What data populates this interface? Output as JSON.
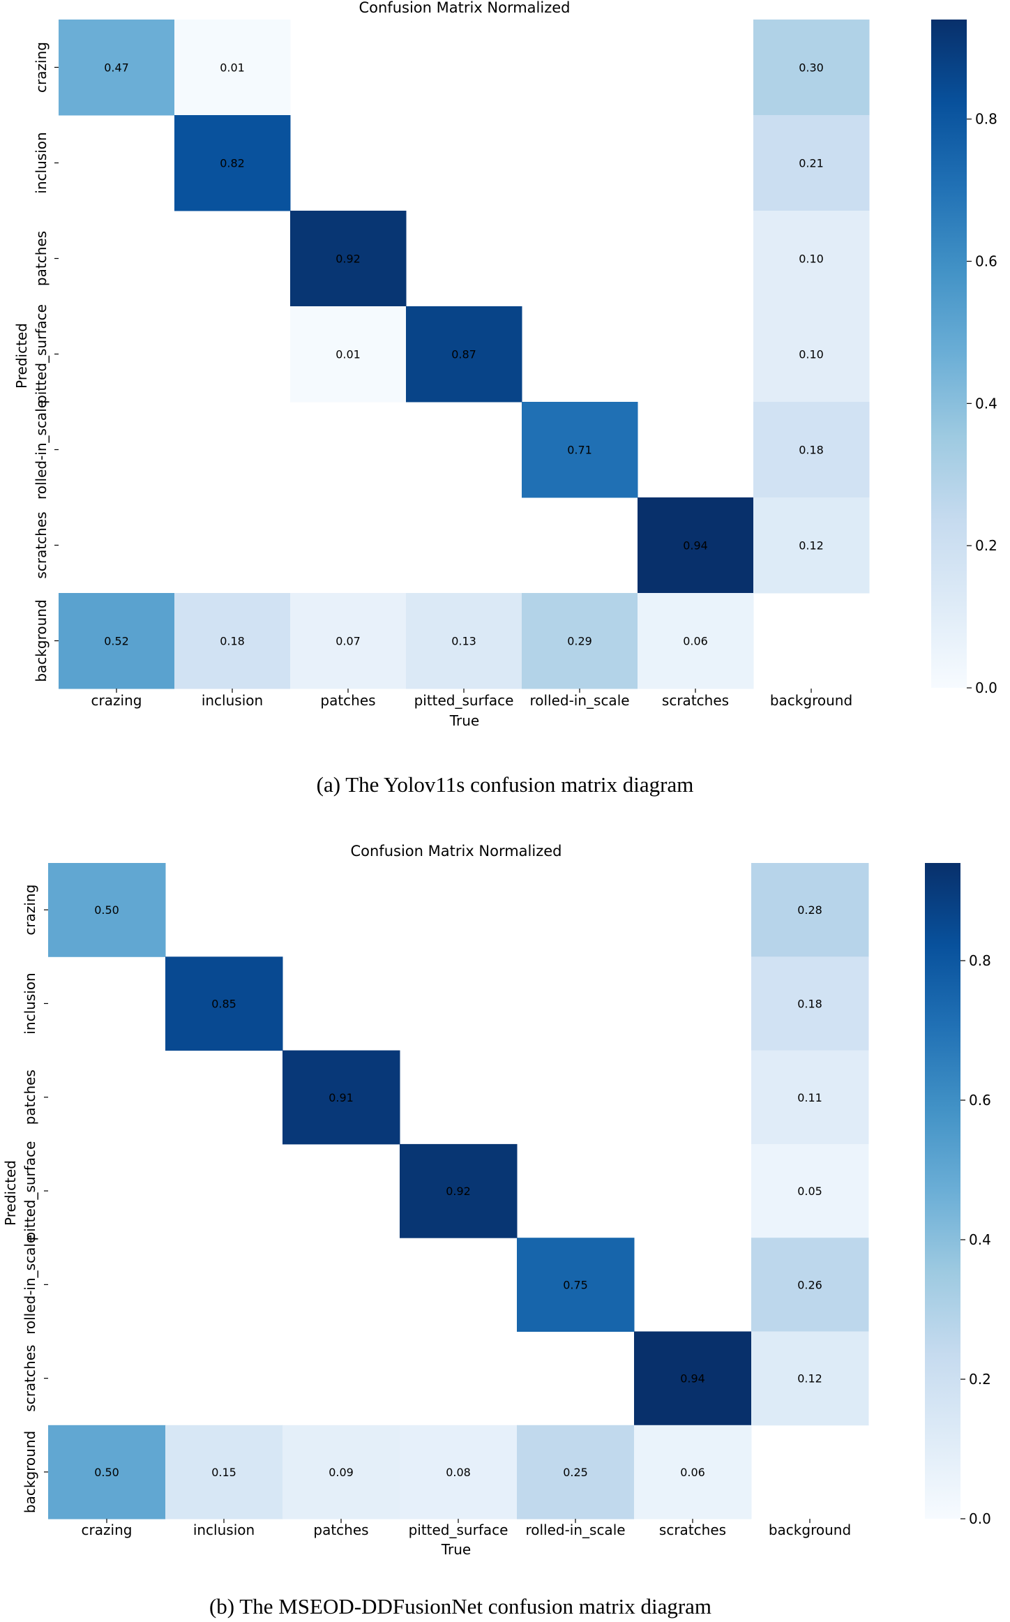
{
  "chart_data": [
    {
      "type": "heatmap",
      "title": "Confusion Matrix Normalized",
      "xlabel": "True",
      "ylabel": "Predicted",
      "x_categories": [
        "crazing",
        "inclusion",
        "patches",
        "pitted_surface",
        "rolled-in_scale",
        "scratches",
        "background"
      ],
      "y_categories": [
        "crazing",
        "inclusion",
        "patches",
        "pitted_surface",
        "rolled-in_scale",
        "scratches",
        "background"
      ],
      "colormap": "Blues",
      "vmin": 0.0,
      "vmax": 0.94,
      "colorbar_ticks": [
        "0.0",
        "0.2",
        "0.4",
        "0.6",
        "0.8"
      ],
      "values": [
        [
          0.47,
          0.01,
          null,
          null,
          null,
          null,
          0.3
        ],
        [
          null,
          0.82,
          null,
          null,
          null,
          null,
          0.21
        ],
        [
          null,
          null,
          0.92,
          null,
          null,
          null,
          0.1
        ],
        [
          null,
          null,
          0.01,
          0.87,
          null,
          null,
          0.1
        ],
        [
          null,
          null,
          null,
          null,
          0.71,
          null,
          0.18
        ],
        [
          null,
          null,
          null,
          null,
          null,
          0.94,
          0.12
        ],
        [
          0.52,
          0.18,
          0.07,
          0.13,
          0.29,
          0.06,
          null
        ]
      ],
      "caption": "(a)  The Yolov11s confusion matrix diagram"
    },
    {
      "type": "heatmap",
      "title": "Confusion Matrix Normalized",
      "xlabel": "True",
      "ylabel": "Predicted",
      "x_categories": [
        "crazing",
        "inclusion",
        "patches",
        "pitted_surface",
        "rolled-in_scale",
        "scratches",
        "background"
      ],
      "y_categories": [
        "crazing",
        "inclusion",
        "patches",
        "pitted_surface",
        "rolled-in_scale",
        "scratches",
        "background"
      ],
      "colormap": "Blues",
      "vmin": 0.0,
      "vmax": 0.94,
      "colorbar_ticks": [
        "0.0",
        "0.2",
        "0.4",
        "0.6",
        "0.8"
      ],
      "values": [
        [
          0.5,
          null,
          null,
          null,
          null,
          null,
          0.28
        ],
        [
          null,
          0.85,
          null,
          null,
          null,
          null,
          0.18
        ],
        [
          null,
          null,
          0.91,
          null,
          null,
          null,
          0.11
        ],
        [
          null,
          null,
          null,
          0.92,
          null,
          null,
          0.05
        ],
        [
          null,
          null,
          null,
          null,
          0.75,
          null,
          0.26
        ],
        [
          null,
          null,
          null,
          null,
          null,
          0.94,
          0.12
        ],
        [
          0.5,
          0.15,
          0.09,
          0.08,
          0.25,
          0.06,
          null
        ]
      ],
      "caption": "(b)  The MSEOD-DDFusionNet confusion matrix diagram"
    }
  ]
}
